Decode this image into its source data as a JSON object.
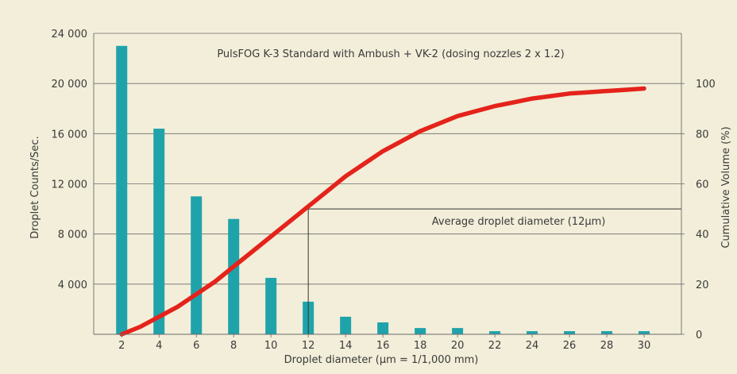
{
  "chart_data": {
    "type": "bar",
    "title": "PulsFOG K-3 Standard with Ambush + VK-2 (dosing nozzles 2 x 1.2)",
    "xlabel": "Droplet diameter (μm = 1/1,000 mm)",
    "ylabel_left": "Droplet Counts/Sec.",
    "ylabel_right": "Cumulative Volume (%)",
    "categories": [
      "2",
      "4",
      "6",
      "8",
      "10",
      "12",
      "14",
      "16",
      "18",
      "20",
      "22",
      "24",
      "26",
      "28",
      "30"
    ],
    "left_axis": {
      "ylim": [
        0,
        24000
      ],
      "ticks": [
        0,
        4000,
        8000,
        12000,
        16000,
        20000,
        24000
      ],
      "tick_labels": [
        "",
        "4 000",
        "8 000",
        "12 000",
        "16 000",
        "20 000",
        "24 000"
      ]
    },
    "right_axis": {
      "ylim": [
        0,
        120
      ],
      "ticks": [
        0,
        20,
        40,
        60,
        80,
        100
      ],
      "tick_labels": [
        "0",
        "20",
        "40",
        "60",
        "80",
        "100"
      ]
    },
    "series": [
      {
        "type": "bar",
        "axis": "left",
        "color": "#1fa3ab",
        "x": [
          2,
          4,
          6,
          8,
          10,
          12,
          14,
          16,
          18,
          20,
          22,
          24,
          26,
          28,
          30
        ],
        "values": [
          23000,
          16400,
          11000,
          9200,
          4500,
          2600,
          1400,
          950,
          500,
          500,
          250,
          250,
          250,
          250,
          250
        ]
      },
      {
        "type": "line",
        "axis": "right",
        "color": "#e4231b",
        "x": [
          2,
          3,
          4,
          5,
          6,
          7,
          8,
          9,
          10,
          11,
          12,
          13,
          14,
          15,
          16,
          17,
          18,
          19,
          20,
          21,
          22,
          23,
          24,
          25,
          26,
          27,
          28,
          29,
          30
        ],
        "values": [
          0,
          3,
          7,
          11,
          16,
          21,
          27,
          33,
          39,
          45,
          51,
          57,
          63,
          68,
          73,
          77,
          81,
          84,
          87,
          89,
          91,
          92.5,
          94,
          95,
          96,
          96.5,
          97,
          97.5,
          98
        ]
      }
    ],
    "annotations": [
      {
        "text": "Average droplet diameter (12μm)",
        "x": 12,
        "y_right": 50
      }
    ],
    "grid": true
  }
}
